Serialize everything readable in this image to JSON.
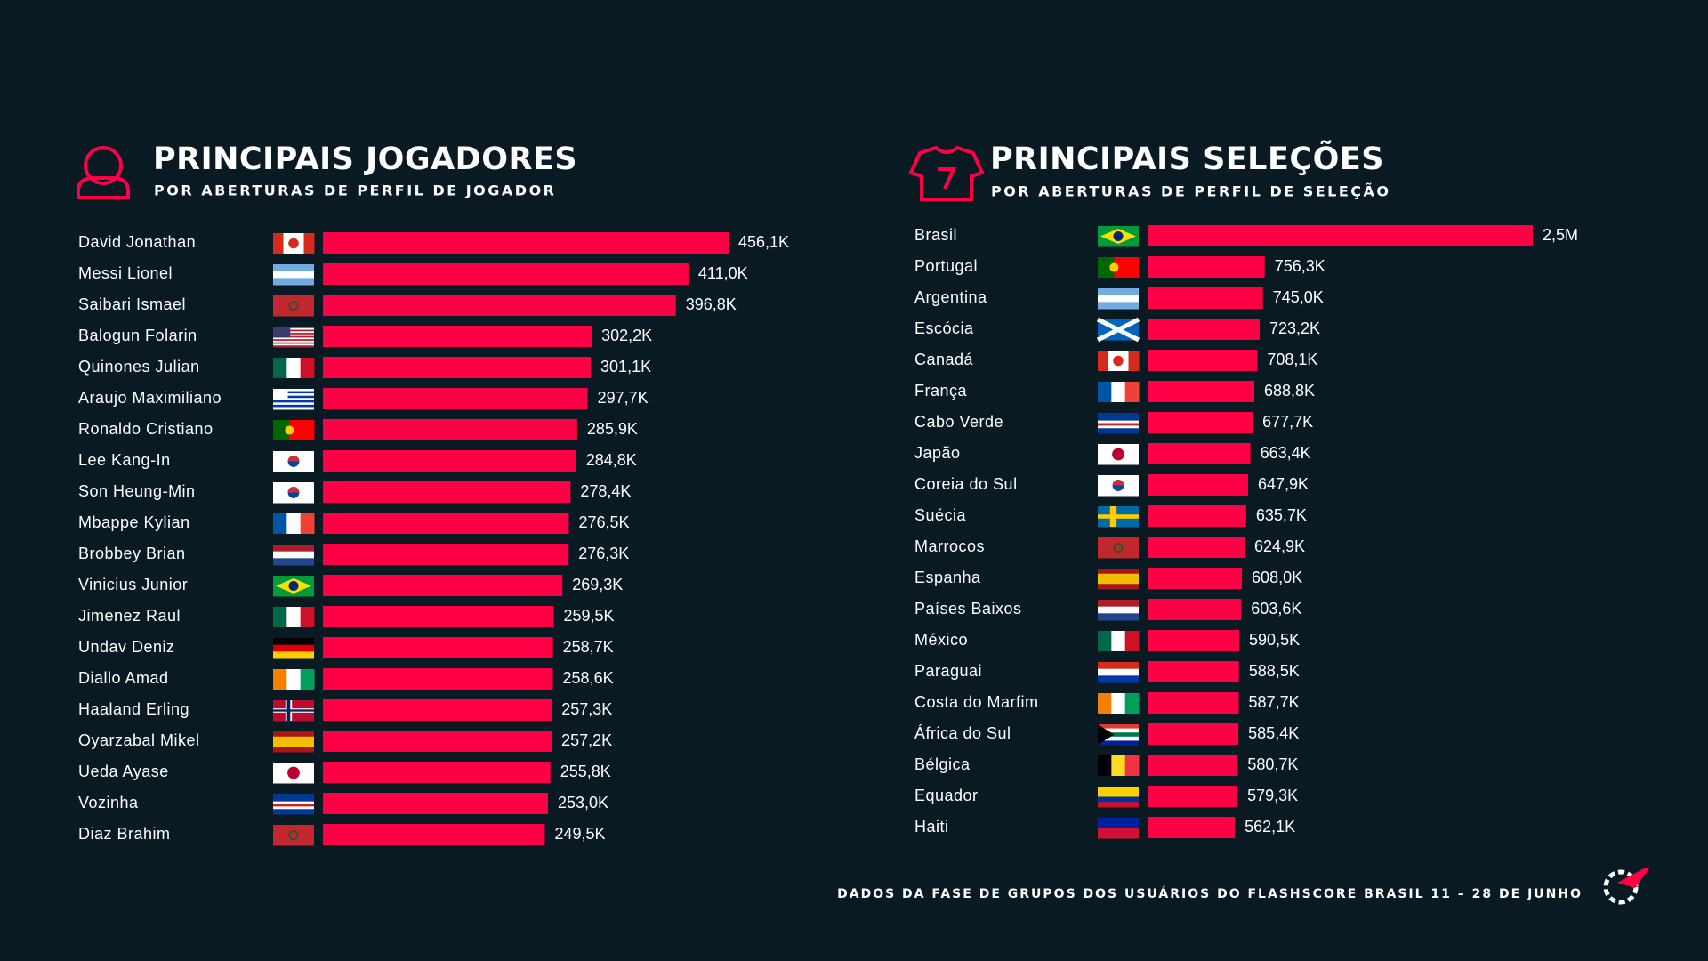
{
  "chart_data": [
    {
      "type": "bar",
      "orientation": "horizontal",
      "title": "PRINCIPAIS JOGADORES",
      "subtitle": "POR ABERTURAS DE PERFIL DE JOGADOR",
      "color": "#ff0046",
      "categories": [
        "David Jonathan",
        "Messi Lionel",
        "Saibari Ismael",
        "Balogun Folarin",
        "Quinones Julian",
        "Araujo Maximiliano",
        "Ronaldo Cristiano",
        "Lee Kang-In",
        "Son Heung-Min",
        "Mbappe Kylian",
        "Brobbey Brian",
        "Vinicius Junior",
        "Jimenez Raul",
        "Undav Deniz",
        "Diallo Amad",
        "Haaland Erling",
        "Oyarzabal Mikel",
        "Ueda Ayase",
        "Vozinha",
        "Diaz Brahim"
      ],
      "values": [
        456100,
        411000,
        396800,
        302200,
        301100,
        297700,
        285900,
        284800,
        278400,
        276500,
        276300,
        269300,
        259500,
        258700,
        258600,
        257300,
        257200,
        255800,
        253000,
        249500
      ],
      "value_labels": [
        "456,1K",
        "411,0K",
        "396,8K",
        "302,2K",
        "301,1K",
        "297,7K",
        "285,9K",
        "284,8K",
        "278,4K",
        "276,5K",
        "276,3K",
        "269,3K",
        "259,5K",
        "258,7K",
        "258,6K",
        "257,3K",
        "257,2K",
        "255,8K",
        "253,0K",
        "249,5K"
      ]
    },
    {
      "type": "bar",
      "orientation": "horizontal",
      "title": "PRINCIPAIS SELEÇÕES",
      "subtitle": "POR ABERTURAS DE PERFIL DE SELEÇÃO",
      "color": "#ff0046",
      "categories": [
        "Brasil",
        "Portugal",
        "Argentina",
        "Escócia",
        "Canadá",
        "França",
        "Cabo Verde",
        "Japão",
        "Coreia do Sul",
        "Suécia",
        "Marrocos",
        "Espanha",
        "Países Baixos",
        "México",
        "Paraguai",
        "Costa do Marfim",
        "África do Sul",
        "Bélgica",
        "Equador",
        "Haiti"
      ],
      "values": [
        2500000,
        756300,
        745000,
        723200,
        708100,
        688800,
        677700,
        663400,
        647900,
        635700,
        624900,
        608000,
        603600,
        590500,
        588500,
        587700,
        585400,
        580700,
        579300,
        562100
      ],
      "value_labels": [
        "2,5M",
        "756,3K",
        "745,0K",
        "723,2K",
        "708,1K",
        "688,8K",
        "677,7K",
        "663,4K",
        "647,9K",
        "635,7K",
        "624,9K",
        "608,0K",
        "603,6K",
        "590,5K",
        "588,5K",
        "587,7K",
        "585,4K",
        "580,7K",
        "579,3K",
        "562,1K"
      ]
    }
  ],
  "footer": "DADOS DA FASE DE GRUPOS DOS USUÁRIOS DO FLASHSCORE BRASIL 11 – 28 DE JUNHO"
}
